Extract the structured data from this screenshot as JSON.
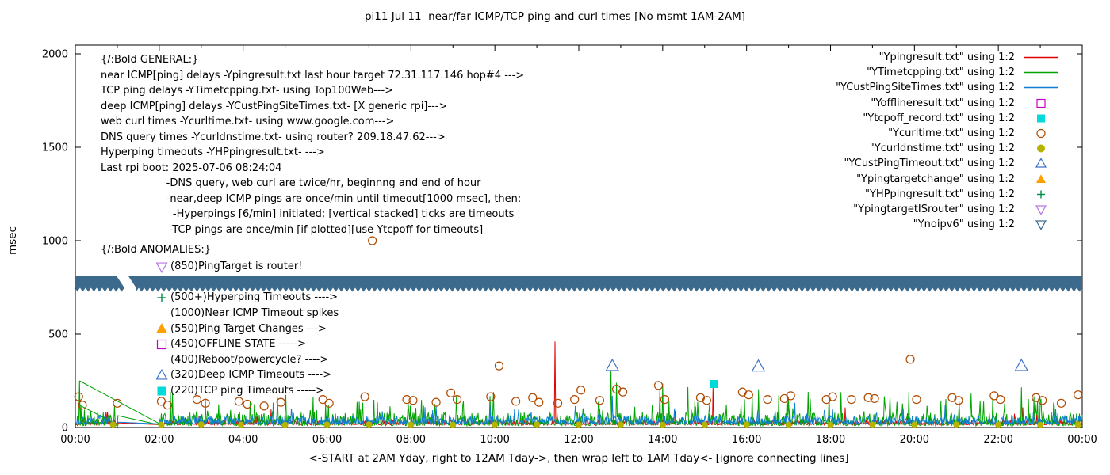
{
  "title": "pi11 Jul 11  near/far ICMP/TCP ping and curl times [No msmt 1AM-2AM]",
  "axes": {
    "ylabel": "msec",
    "xlabel": "<-START at 2AM Yday, right to 12AM Tday->, then wrap left to 1AM Tday<- [ignore connecting lines]",
    "yticks": [
      0,
      500,
      1000,
      1500,
      2000
    ],
    "xticks": [
      {
        "h": 0,
        "label": "00:00"
      },
      {
        "h": 2,
        "label": "02:00"
      },
      {
        "h": 4,
        "label": "04:00"
      },
      {
        "h": 6,
        "label": "06:00"
      },
      {
        "h": 8,
        "label": "08:00"
      },
      {
        "h": 10,
        "label": "10:00"
      },
      {
        "h": 12,
        "label": "12:00"
      },
      {
        "h": 14,
        "label": "14:00"
      },
      {
        "h": 16,
        "label": "16:00"
      },
      {
        "h": 18,
        "label": "18:00"
      },
      {
        "h": 20,
        "label": "20:00"
      },
      {
        "h": 22,
        "label": "22:00"
      },
      {
        "h": 24,
        "label": "00:00"
      }
    ]
  },
  "legend": [
    {
      "label": "\"Ypingresult.txt\" using 1:2",
      "marker": "line",
      "color": "#e10000"
    },
    {
      "label": "\"YTimetcpping.txt\" using 1:2",
      "marker": "line",
      "color": "#00a300"
    },
    {
      "label": "\"YCustPingSiteTimes.txt\" using 1:2",
      "marker": "line",
      "color": "#0e7fd4"
    },
    {
      "label": "\"Yofflineresult.txt\" using 1:2",
      "marker": "square-open",
      "color": "#c400c4"
    },
    {
      "label": "\"Ytcpoff_record.txt\" using 1:2",
      "marker": "square-filled",
      "color": "#00d9d9"
    },
    {
      "label": "\"Ycurltime.txt\" using 1:2",
      "marker": "circle-open",
      "color": "#b04a00"
    },
    {
      "label": "\"Ycurldnstime.txt\" using 1:2",
      "marker": "circle-filled",
      "color": "#b5b500"
    },
    {
      "label": "\"YCustPingTimeout.txt\" using 1:2",
      "marker": "triangle-open",
      "color": "#3f72c8"
    },
    {
      "label": "\"Ypingtargetchange\" using 1:2",
      "marker": "triangle-filled",
      "color": "#ffa000"
    },
    {
      "label": "\"YHPpingresult.txt\" using 1:2",
      "marker": "plus",
      "color": "#008c45"
    },
    {
      "label": "\"YpingtargetISrouter\" using 1:2",
      "marker": "triangle-down-open",
      "color": "#b877e0"
    },
    {
      "label": "\"Ynoipv6\" using 1:2",
      "marker": "triangle-down-open",
      "color": "#3c6a8c"
    }
  ],
  "annotations": {
    "general": [
      "{/:Bold GENERAL:}",
      "near ICMP[ping] delays -Ypingresult.txt last hour target 72.31.117.146 hop#4 --->",
      "TCP ping delays -YTimetcpping.txt- using Top100Web--->",
      "deep ICMP[ping] delays -YCustPingSiteTimes.txt- [X generic rpi]--->",
      "web curl times -Ycurltime.txt- using www.google.com--->",
      "DNS query times -Ycurldnstime.txt- using router? 209.18.47.62--->",
      "Hyperping timeouts -YHPpingresult.txt- --->",
      "Last rpi boot: 2025-07-06 08:24:04",
      "                    -DNS query, web curl are twice/hr, beginnng and end of hour",
      "                    -near,deep ICMP pings are once/min until timeout[1000 msec], then:",
      "                      -Hyperpings [6/min] initiated; [vertical stacked] ticks are timeouts",
      "                     -TCP pings are once/min [if plotted][use Ytcpoff for timeouts]"
    ],
    "anomalies_header": "{/:Bold ANOMALIES:}",
    "anomalies": [
      {
        "marker": "triangle-down-open",
        "color": "#b877e0",
        "text": "(850)PingTarget is router!"
      },
      {
        "marker": null,
        "color": null,
        "text": ""
      },
      {
        "marker": "plus",
        "color": "#008c45",
        "text": "(500+)Hyperping Timeouts ---->"
      },
      {
        "marker": null,
        "color": null,
        "text": "(1000)Near ICMP Timeout spikes"
      },
      {
        "marker": "triangle-filled",
        "color": "#ffa000",
        "text": "(550)Ping Target Changes --->"
      },
      {
        "marker": "square-open",
        "color": "#c400c4",
        "text": "(450)OFFLINE STATE ----->"
      },
      {
        "marker": null,
        "color": null,
        "text": "(400)Reboot/powercycle? ---->"
      },
      {
        "marker": "triangle-open",
        "color": "#3f72c8",
        "text": "(320)Deep ICMP Timeouts ---->"
      },
      {
        "marker": "square-filled",
        "color": "#00d9d9",
        "text": "(220)TCP ping Timeouts ----->"
      }
    ]
  },
  "chart_data": {
    "type": "line+scatter",
    "x_unit": "hours",
    "xlim_hours": [
      0,
      24
    ],
    "ylim": [
      0,
      2000
    ],
    "grid": false,
    "legend_position": "top-right-inside",
    "gap_hours": [
      1.03,
      2.0
    ],
    "series": [
      {
        "name": "Ypingresult",
        "color": "#e10000",
        "base": 15,
        "amp": 25,
        "spike_prob": 0.012,
        "spike_amp": 90,
        "seed": 11,
        "spikes": [
          [
            11.43,
            460
          ],
          [
            15.2,
            215
          ]
        ]
      },
      {
        "name": "YTimetcpping",
        "color": "#00a300",
        "base": 10,
        "amp": 70,
        "spike_prob": 0.07,
        "spike_amp": 140,
        "seed": 22,
        "spikes": [
          [
            0.1,
            250
          ],
          [
            12.76,
            305
          ],
          [
            12.9,
            240
          ],
          [
            14.0,
            235
          ],
          [
            16.28,
            205
          ],
          [
            22.55,
            215
          ]
        ]
      },
      {
        "name": "YCustPingSiteTimes",
        "color": "#0e7fd4",
        "base": 18,
        "amp": 45,
        "spike_prob": 0.03,
        "spike_amp": 80,
        "seed": 33,
        "spikes": [
          [
            12.8,
            170
          ]
        ]
      }
    ],
    "connectors": [
      {
        "color": "#00a300",
        "from": [
          0.1,
          250
        ],
        "to": [
          2.05,
          15
        ]
      },
      {
        "color": "#00a300",
        "from": [
          0.1,
          120
        ],
        "to": [
          1.03,
          12
        ]
      }
    ],
    "scatter": [
      {
        "name": "Ycurltime",
        "marker": "circle-open",
        "color": "#b04a00",
        "size": 10,
        "points": [
          [
            0.08,
            165
          ],
          [
            0.17,
            120
          ],
          [
            1.0,
            130
          ],
          [
            2.05,
            140
          ],
          [
            2.2,
            120
          ],
          [
            2.9,
            150
          ],
          [
            3.1,
            130
          ],
          [
            3.9,
            140
          ],
          [
            4.1,
            125
          ],
          [
            4.5,
            115
          ],
          [
            4.9,
            135
          ],
          [
            5.9,
            150
          ],
          [
            6.05,
            130
          ],
          [
            6.9,
            165
          ],
          [
            7.08,
            1000
          ],
          [
            7.9,
            150
          ],
          [
            8.05,
            145
          ],
          [
            8.6,
            135
          ],
          [
            8.95,
            185
          ],
          [
            9.1,
            150
          ],
          [
            9.9,
            165
          ],
          [
            10.1,
            330
          ],
          [
            10.5,
            140
          ],
          [
            10.9,
            160
          ],
          [
            11.05,
            135
          ],
          [
            11.5,
            130
          ],
          [
            11.9,
            150
          ],
          [
            12.05,
            200
          ],
          [
            12.5,
            145
          ],
          [
            12.9,
            205
          ],
          [
            13.05,
            190
          ],
          [
            13.9,
            225
          ],
          [
            14.05,
            150
          ],
          [
            14.9,
            160
          ],
          [
            15.05,
            145
          ],
          [
            15.9,
            190
          ],
          [
            16.05,
            175
          ],
          [
            16.5,
            150
          ],
          [
            16.9,
            155
          ],
          [
            17.05,
            170
          ],
          [
            17.9,
            150
          ],
          [
            18.05,
            165
          ],
          [
            18.5,
            150
          ],
          [
            18.9,
            160
          ],
          [
            19.05,
            155
          ],
          [
            19.9,
            365
          ],
          [
            20.05,
            150
          ],
          [
            20.9,
            160
          ],
          [
            21.05,
            145
          ],
          [
            21.9,
            170
          ],
          [
            22.05,
            150
          ],
          [
            22.9,
            160
          ],
          [
            23.05,
            145
          ],
          [
            23.5,
            130
          ],
          [
            23.9,
            175
          ]
        ]
      },
      {
        "name": "Ycurldnstime",
        "marker": "circle-filled",
        "color": "#b5b500",
        "size": 8,
        "points": [
          [
            0.9,
            15
          ],
          [
            2.05,
            14
          ],
          [
            3.0,
            16
          ],
          [
            3.95,
            15
          ],
          [
            5.0,
            14
          ],
          [
            6.0,
            15
          ],
          [
            7.0,
            16
          ],
          [
            8.0,
            15
          ],
          [
            9.0,
            14
          ],
          [
            10.0,
            15
          ],
          [
            11.0,
            16
          ],
          [
            12.0,
            15
          ],
          [
            13.0,
            15
          ],
          [
            14.0,
            14
          ],
          [
            15.0,
            15
          ],
          [
            16.0,
            16
          ],
          [
            17.0,
            15
          ],
          [
            18.0,
            14
          ],
          [
            19.0,
            15
          ],
          [
            20.0,
            15
          ],
          [
            21.0,
            16
          ],
          [
            22.0,
            15
          ],
          [
            23.0,
            14
          ],
          [
            23.9,
            15
          ]
        ]
      },
      {
        "name": "YCustPingTimeout",
        "marker": "triangle-open",
        "color": "#3f72c8",
        "size": 13,
        "points": [
          [
            12.8,
            330
          ],
          [
            16.28,
            327
          ],
          [
            22.55,
            330
          ]
        ]
      },
      {
        "name": "Ytcpoff_record",
        "marker": "square-filled",
        "color": "#00d9d9",
        "size": 10,
        "points": [
          [
            15.23,
            233
          ]
        ]
      }
    ],
    "band": {
      "name": "Ynoipv6",
      "color": "#3c6a8c",
      "value": 780,
      "top": 812,
      "bottom": 748,
      "segments": [
        [
          0,
          0.98
        ],
        [
          1.26,
          24
        ]
      ]
    }
  }
}
